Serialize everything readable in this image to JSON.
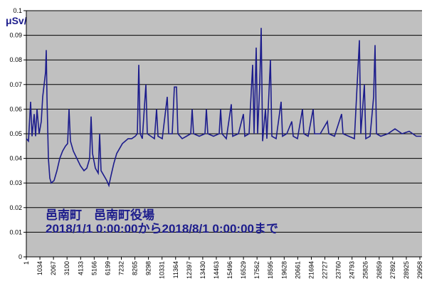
{
  "chart_data": {
    "type": "line",
    "y_label": "μSv/h",
    "annotations": [
      "邑南町　邑南町役場",
      "2018/1/1  0:00:00から2018/8/1  0:00:00まで"
    ],
    "color": "#1c1c8c",
    "grid": true,
    "xlim": [
      1,
      30120
    ],
    "ylim": [
      0,
      0.1
    ],
    "yticks": [
      0,
      0.01,
      0.02,
      0.03,
      0.04,
      0.05,
      0.06,
      0.07,
      0.08,
      0.09,
      0.1
    ],
    "xticks": [
      1,
      1034,
      2067,
      3100,
      4133,
      5166,
      6199,
      7232,
      8265,
      9298,
      10331,
      11364,
      12397,
      13430,
      14463,
      15496,
      16529,
      17562,
      18595,
      19628,
      20661,
      21694,
      22727,
      23760,
      24793,
      25826,
      26859,
      27892,
      28925,
      29958
    ],
    "x": [
      1,
      164,
      326,
      434,
      597,
      705,
      813,
      976,
      1138,
      1246,
      1355,
      1463,
      1517,
      1571,
      1680,
      1788,
      1896,
      2114,
      2330,
      2547,
      2764,
      2980,
      3143,
      3251,
      3360,
      3576,
      3847,
      4118,
      4389,
      4605,
      4822,
      4930,
      5039,
      5255,
      5472,
      5580,
      5689,
      5906,
      6122,
      6285,
      6447,
      6664,
      6881,
      7097,
      7314,
      7531,
      7747,
      8018,
      8289,
      8451,
      8560,
      8668,
      8831,
      9102,
      9210,
      9480,
      9751,
      9914,
      10022,
      10347,
      10727,
      10835,
      11106,
      11268,
      11431,
      11539,
      11864,
      12189,
      12514,
      12623,
      12731,
      13164,
      13598,
      13706,
      13814,
      14248,
      14681,
      14789,
      14897,
      15222,
      15602,
      15710,
      16143,
      16523,
      16631,
      16956,
      17227,
      17335,
      17498,
      17606,
      17769,
      17877,
      17985,
      18202,
      18310,
      18581,
      18689,
      19014,
      19393,
      19502,
      19827,
      20206,
      20314,
      20639,
      21019,
      21127,
      21452,
      21831,
      21940,
      22373,
      22915,
      23023,
      23456,
      23998,
      24106,
      24539,
      24973,
      25352,
      25460,
      25731,
      25839,
      26164,
      26435,
      26543,
      26652,
      26977,
      27518,
      28060,
      28602,
      29143,
      29685,
      30064
    ],
    "values": [
      0.048,
      0.047,
      0.063,
      0.049,
      0.058,
      0.049,
      0.06,
      0.05,
      0.055,
      0.065,
      0.07,
      0.075,
      0.084,
      0.065,
      0.04,
      0.032,
      0.03,
      0.031,
      0.035,
      0.04,
      0.043,
      0.045,
      0.046,
      0.06,
      0.047,
      0.043,
      0.04,
      0.037,
      0.035,
      0.036,
      0.04,
      0.057,
      0.042,
      0.036,
      0.034,
      0.05,
      0.035,
      0.033,
      0.031,
      0.029,
      0.033,
      0.038,
      0.042,
      0.044,
      0.046,
      0.047,
      0.048,
      0.048,
      0.049,
      0.05,
      0.078,
      0.05,
      0.048,
      0.07,
      0.05,
      0.049,
      0.048,
      0.06,
      0.049,
      0.048,
      0.065,
      0.05,
      0.05,
      0.069,
      0.069,
      0.05,
      0.048,
      0.049,
      0.05,
      0.06,
      0.05,
      0.049,
      0.05,
      0.06,
      0.05,
      0.049,
      0.05,
      0.06,
      0.05,
      0.048,
      0.062,
      0.049,
      0.05,
      0.058,
      0.049,
      0.05,
      0.078,
      0.05,
      0.085,
      0.05,
      0.07,
      0.093,
      0.047,
      0.06,
      0.048,
      0.08,
      0.049,
      0.048,
      0.063,
      0.049,
      0.05,
      0.055,
      0.049,
      0.048,
      0.06,
      0.05,
      0.049,
      0.06,
      0.05,
      0.05,
      0.055,
      0.05,
      0.049,
      0.058,
      0.05,
      0.049,
      0.048,
      0.088,
      0.05,
      0.07,
      0.048,
      0.049,
      0.065,
      0.086,
      0.05,
      0.049,
      0.05,
      0.052,
      0.05,
      0.051,
      0.049,
      0.049
    ]
  }
}
